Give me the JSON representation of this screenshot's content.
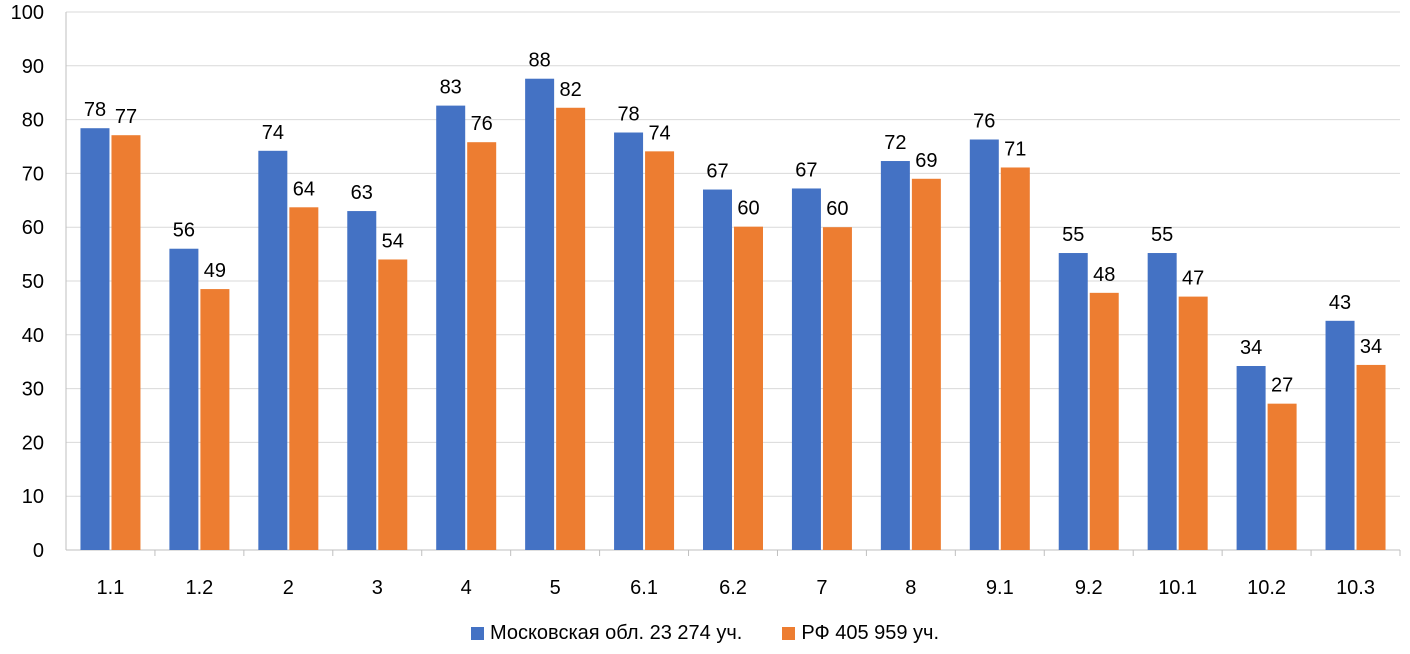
{
  "chart_data": {
    "type": "bar",
    "categories": [
      "1.1",
      "1.2",
      "2",
      "3",
      "4",
      "5",
      "6.1",
      "6.2",
      "7",
      "8",
      "9.1",
      "9.2",
      "10.1",
      "10.2",
      "10.3"
    ],
    "series": [
      {
        "name": "Московская обл. 23 274 уч.",
        "color": "#4472C4",
        "values": [
          78.4,
          56.0,
          74.2,
          63.0,
          82.6,
          87.6,
          77.6,
          67.0,
          67.2,
          72.3,
          76.3,
          55.2,
          55.2,
          34.2,
          42.6
        ],
        "labels": [
          "78",
          "56",
          "74",
          "63",
          "83",
          "88",
          "78",
          "67",
          "67",
          "72",
          "76",
          "55",
          "55",
          "34",
          "43"
        ]
      },
      {
        "name": "РФ 405 959 уч.",
        "color": "#ED7D31",
        "values": [
          77.1,
          48.5,
          63.7,
          54.0,
          75.8,
          82.2,
          74.1,
          60.1,
          60.0,
          69.0,
          71.1,
          47.8,
          47.1,
          27.2,
          34.4
        ],
        "labels": [
          "77",
          "49",
          "64",
          "54",
          "76",
          "82",
          "74",
          "60",
          "60",
          "69",
          "71",
          "48",
          "47",
          "27",
          "34"
        ]
      }
    ],
    "ylim": [
      0,
      100
    ],
    "yticks": [
      "0",
      "10",
      "20",
      "30",
      "40",
      "50",
      "60",
      "70",
      "80",
      "90",
      "100"
    ],
    "grid": true,
    "legend_position": "bottom"
  }
}
